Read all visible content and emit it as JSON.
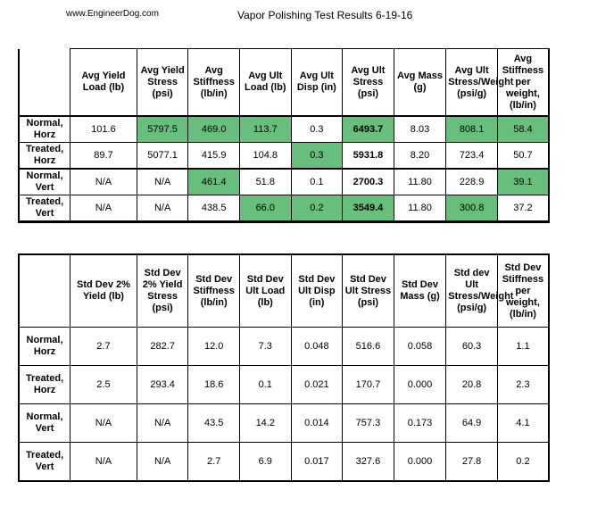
{
  "header": {
    "site": "www.EngineerDog.com",
    "title": "Vapor Polishing Test Results 6-19-16"
  },
  "avg_table": {
    "headers": [
      "",
      "Avg Yield Load (lb)",
      "Avg Yield Stress (psi)",
      "Avg Stiffness (lb/in)",
      "Avg Ult Load (lb)",
      "Avg Ult Disp (in)",
      "Avg Ult Stress (psi)",
      "Avg Mass (g)",
      "Avg Ult Stress/Weight (psi/g)",
      "Avg Stiffness per weight,(lb/in)"
    ],
    "rows": [
      {
        "label": "Normal, Horz",
        "cells": [
          "101.6",
          "5797.5",
          "469.0",
          "113.7",
          "0.3",
          "6493.7",
          "8.03",
          "808.1",
          "58.4"
        ]
      },
      {
        "label": "Treated, Horz",
        "cells": [
          "89.7",
          "5077.1",
          "415.9",
          "104.8",
          "0.3",
          "5931.8",
          "8.20",
          "723.4",
          "50.7"
        ]
      },
      {
        "label": "Normal, Vert",
        "cells": [
          "N/A",
          "N/A",
          "461.4",
          "51.8",
          "0.1",
          "2700.3",
          "11.80",
          "228.9",
          "39.1"
        ]
      },
      {
        "label": "Treated, Vert",
        "cells": [
          "N/A",
          "N/A",
          "438.5",
          "66.0",
          "0.2",
          "3549.4",
          "11.80",
          "300.8",
          "37.2"
        ]
      }
    ],
    "highlight_color": "#67bf7b"
  },
  "std_table": {
    "headers": [
      "",
      "Std Dev 2% Yield (lb)",
      "Std Dev 2% Yield Stress (psi)",
      "Std Dev Stiffness (lb/in)",
      "Std Dev Ult Load (lb)",
      "Std Dev Ult Disp (in)",
      "Std Dev Ult Stress (psi)",
      "Std Dev Mass (g)",
      "Std dev Ult Stress/Weight (psi/g)",
      "Std Dev Stiffness per weight,(lb/in)"
    ],
    "rows": [
      {
        "label": "Normal, Horz",
        "cells": [
          "2.7",
          "282.7",
          "12.0",
          "7.3",
          "0.048",
          "516.6",
          "0.058",
          "60.3",
          "1.1"
        ]
      },
      {
        "label": "Treated, Horz",
        "cells": [
          "2.5",
          "293.4",
          "18.6",
          "0.1",
          "0.021",
          "170.7",
          "0.000",
          "20.8",
          "2.3"
        ]
      },
      {
        "label": "Normal, Vert",
        "cells": [
          "N/A",
          "N/A",
          "43.5",
          "14.2",
          "0.014",
          "757.3",
          "0.173",
          "64.9",
          "4.1"
        ]
      },
      {
        "label": "Treated, Vert",
        "cells": [
          "N/A",
          "N/A",
          "2.7",
          "6.9",
          "0.017",
          "327.6",
          "0.000",
          "27.8",
          "0.2"
        ]
      }
    ]
  }
}
